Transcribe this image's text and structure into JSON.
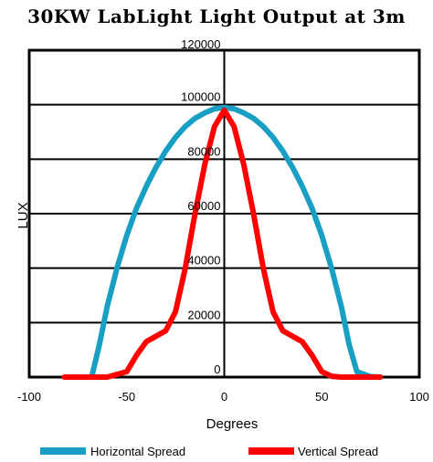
{
  "chart_data": {
    "type": "line",
    "title": "30KW LabLight Light Output at 3m",
    "xlabel": "Degrees",
    "ylabel": "LUX",
    "xlim": [
      -100,
      100
    ],
    "ylim": [
      0,
      120000
    ],
    "x_ticks": [
      -100,
      -50,
      0,
      50,
      100
    ],
    "x_tick_labels": [
      "-100",
      "-50",
      "0",
      "50",
      "100"
    ],
    "y_ticks": [
      0,
      20000,
      40000,
      60000,
      80000,
      100000,
      120000
    ],
    "y_tick_labels": [
      "0",
      "20000",
      "40000",
      "60000",
      "80000",
      "100000",
      "120000"
    ],
    "grid": "horizontal",
    "legend_position": "bottom",
    "colors": {
      "horizontal": "#1a9fc4",
      "vertical": "#ff0000",
      "frame": "#000000"
    },
    "series": [
      {
        "name": "Horizontal Spread",
        "color": "#1a9fc4",
        "x": [
          -68,
          -64,
          -60,
          -55,
          -50,
          -45,
          -40,
          -35,
          -30,
          -25,
          -20,
          -15,
          -10,
          -5,
          0,
          5,
          10,
          15,
          20,
          25,
          30,
          35,
          40,
          45,
          50,
          55,
          60,
          64,
          68,
          75,
          80
        ],
        "y": [
          0,
          12000,
          26000,
          40000,
          52000,
          62000,
          70000,
          77000,
          83000,
          88000,
          92000,
          95000,
          97000,
          98500,
          99000,
          98500,
          97000,
          95000,
          92000,
          88000,
          83000,
          77000,
          70000,
          62000,
          52000,
          40000,
          26000,
          12000,
          2000,
          200,
          0
        ]
      },
      {
        "name": "Vertical Spread",
        "color": "#ff0000",
        "x": [
          -82,
          -60,
          -50,
          -45,
          -40,
          -35,
          -30,
          -25,
          -20,
          -15,
          -10,
          -5,
          0,
          5,
          10,
          15,
          20,
          25,
          30,
          35,
          40,
          45,
          50,
          55,
          60,
          70,
          80
        ],
        "y": [
          0,
          0,
          2000,
          8000,
          13000,
          15000,
          17000,
          24000,
          40000,
          60000,
          78000,
          92000,
          98000,
          92000,
          78000,
          60000,
          40000,
          24000,
          17000,
          15000,
          13000,
          8000,
          2000,
          300,
          0,
          0,
          0
        ]
      }
    ]
  }
}
